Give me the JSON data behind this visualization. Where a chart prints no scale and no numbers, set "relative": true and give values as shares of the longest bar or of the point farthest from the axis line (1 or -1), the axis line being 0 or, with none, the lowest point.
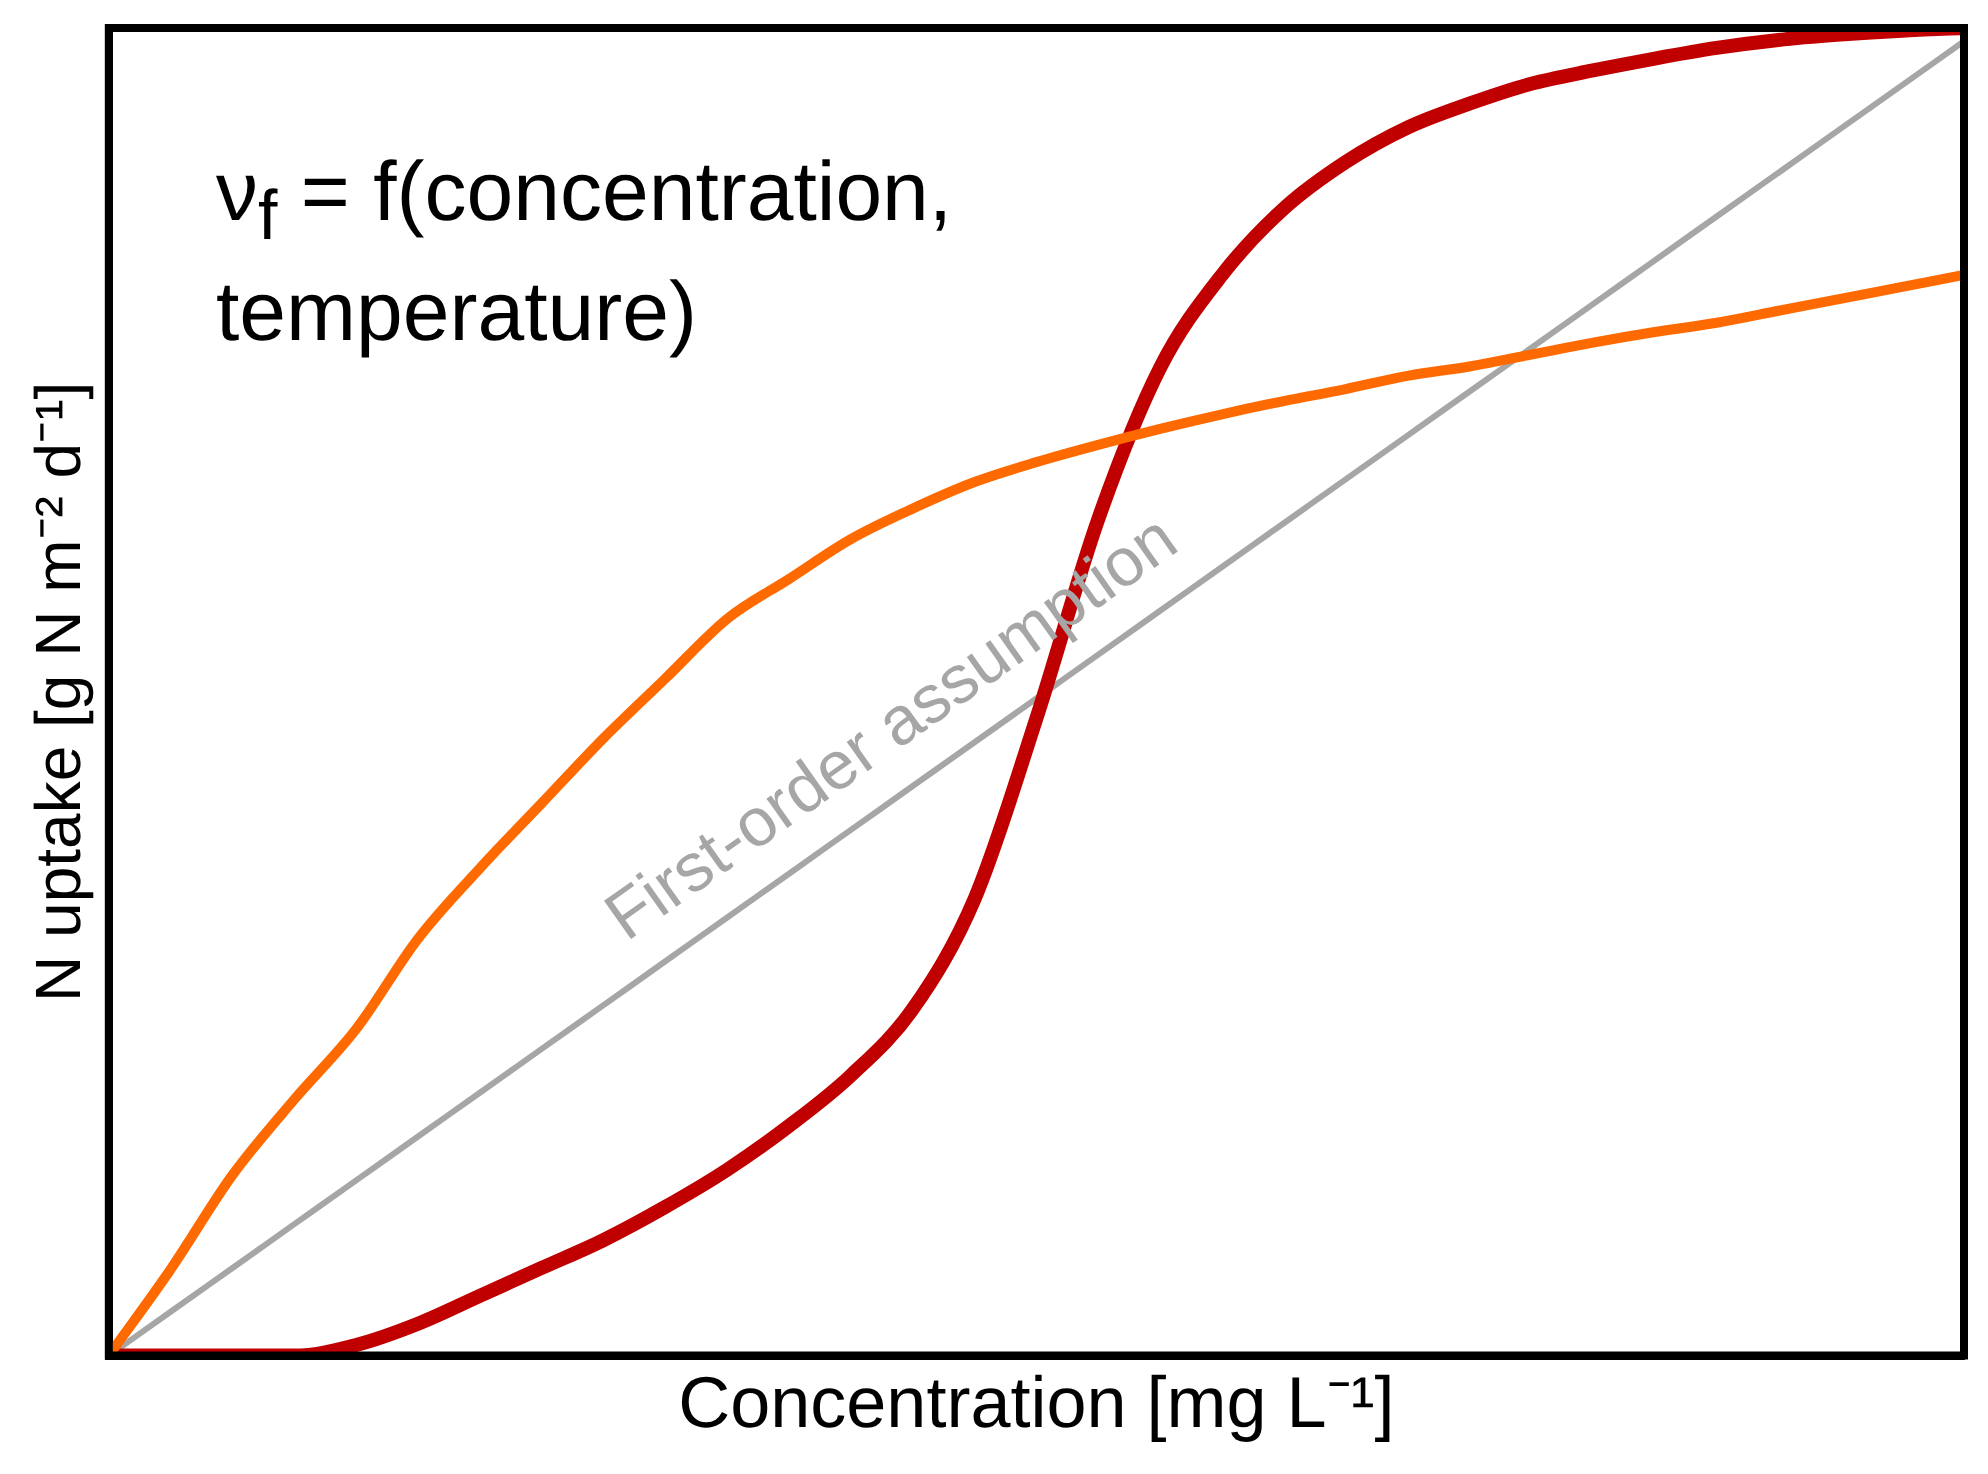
{
  "chart_data": {
    "type": "line",
    "relative": true,
    "xlabel": "Concentration [mg L⁻¹]",
    "ylabel": "N uptake [g N m⁻² d⁻¹]",
    "categories": [
      null,
      null,
      null,
      null,
      null,
      null,
      null,
      null,
      null,
      null,
      null,
      null,
      null,
      null,
      null,
      null,
      null,
      null,
      null,
      null,
      null,
      null,
      null,
      null,
      null,
      null,
      null,
      null,
      null,
      null,
      null
    ],
    "series": [
      {
        "color": "#ff6a00",
        "values": [
          0,
          0.065,
          0.136,
          0.193,
          0.246,
          0.314,
          0.367,
          0.416,
          0.465,
          0.51,
          0.555,
          0.585,
          0.615,
          0.638,
          0.658,
          0.673,
          0.686,
          0.698,
          0.709,
          0.719,
          0.728,
          0.738,
          0.745,
          0.754,
          0.763,
          0.771,
          0.778,
          0.787,
          0.796,
          0.805,
          0.814
        ]
      },
      {
        "color": "#c00000",
        "values": [
          0,
          0,
          0,
          0,
          0.008,
          0.024,
          0.045,
          0.066,
          0.087,
          0.112,
          0.14,
          0.173,
          0.211,
          0.261,
          0.344,
          0.48,
          0.63,
          0.744,
          0.814,
          0.864,
          0.899,
          0.925,
          0.943,
          0.958,
          0.968,
          0.977,
          0.985,
          0.991,
          0.995,
          0.998,
          1
        ]
      },
      {
        "color": "#a6a6a6",
        "values": [
          0,
          0.033,
          0.066,
          0.099,
          0.132,
          0.165,
          0.198,
          0.231,
          0.264,
          0.297,
          0.33,
          0.363,
          0.396,
          0.429,
          0.462,
          0.495,
          0.528,
          0.561,
          0.594,
          0.627,
          0.66,
          0.693,
          0.726,
          0.759,
          0.792,
          0.825,
          0.858,
          0.891,
          0.924,
          0.957,
          0.99
        ]
      }
    ],
    "annotations": [
      "ν$_{f}$ = f(concentration, temperature)",
      "First-order assumption"
    ],
    "grid": false,
    "legend": false,
    "marker": "none",
    "line_style": "solid"
  }
}
